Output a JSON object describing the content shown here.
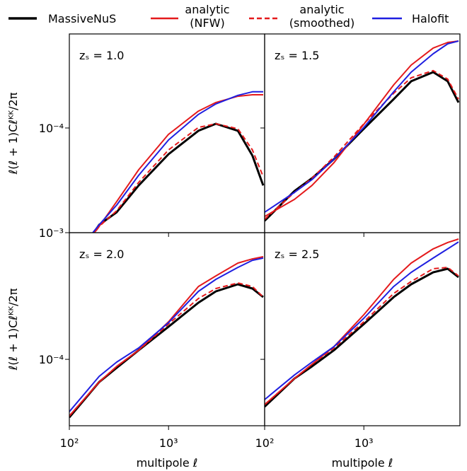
{
  "chart_data": [
    {
      "type": "line",
      "title": "zₛ = 1.0",
      "ylabel": "ℓ(ℓ + 1)Cℓᴷᴷ/2π",
      "x": [
        100,
        200,
        300,
        500,
        1000,
        2000,
        3000,
        5000,
        7000,
        9000
      ],
      "xlim": [
        100,
        9300
      ],
      "ylim": [
        1.49e-05,
        0.000553
      ],
      "log_x": true,
      "log_y": true,
      "xticks": [
        100,
        1000
      ],
      "yticks": [
        {
          "value": 0.0001,
          "label": "10⁻⁴"
        }
      ],
      "series": [
        {
          "name": "MassiveNuS",
          "color": "#000000",
          "values": [
            7.73e-06,
            1.72e-05,
            2.16e-05,
            3.52e-05,
            6.21e-05,
            9.51e-05,
            0.000108,
            9.51e-05,
            6.05e-05,
            3.52e-05
          ]
        },
        {
          "name": "analytic\n(NFW)",
          "color": "#e41a1c",
          "values": [
            8.24e-06,
            1.67e-05,
            2.62e-05,
            4.68e-05,
            8.91e-05,
            0.000136,
            0.000159,
            0.000178,
            0.000183,
            0.000183
          ]
        },
        {
          "name": "analytic\n(smoothed)",
          "color": "#e41a1c",
          "dashed": true,
          "values": [
            7.73e-06,
            1.67e-05,
            2.22e-05,
            3.72e-05,
            6.71e-05,
            0.000101,
            0.000108,
            9.86e-05,
            6.71e-05,
            4.12e-05
          ]
        },
        {
          "name": "Halofit",
          "color": "#1f1fe0",
          "values": [
            8.79e-06,
            1.72e-05,
            2.46e-05,
            4.23e-05,
            8.04e-05,
            0.000128,
            0.000155,
            0.000181,
            0.000193,
            0.000193
          ]
        }
      ]
    },
    {
      "type": "line",
      "title": "zₛ = 1.5",
      "x": [
        100,
        200,
        300,
        500,
        1000,
        2000,
        3000,
        5000,
        7000,
        9000
      ],
      "xlim": [
        100,
        9300
      ],
      "ylim": [
        1.49e-05,
        0.000553
      ],
      "log_x": true,
      "log_y": true,
      "xticks": [
        100,
        1000
      ],
      "yticks": [
        0.0001
      ],
      "series": [
        {
          "color": "#000000",
          "values": [
            1.85e-05,
            3.18e-05,
            4.01e-05,
            5.68e-05,
            9.86e-05,
            0.000169,
            0.000234,
            0.000276,
            0.000234,
            0.000159
          ]
        },
        {
          "color": "#e41a1c",
          "values": [
            2e-05,
            2.73e-05,
            3.52e-05,
            5.32e-05,
            0.000107,
            0.000219,
            0.000314,
            0.000428,
            0.000474,
            0.000486
          ]
        },
        {
          "color": "#e41a1c",
          "dashed": true,
          "values": [
            1.9e-05,
            3.1e-05,
            4.01e-05,
            5.9e-05,
            0.000108,
            0.000188,
            0.000249,
            0.000284,
            0.000243,
            0.000169
          ]
        },
        {
          "color": "#1f1fe0",
          "values": [
            2.16e-05,
            3.1e-05,
            3.91e-05,
            5.68e-05,
            0.000101,
            0.000193,
            0.000276,
            0.000386,
            0.000462,
            0.000486
          ]
        }
      ]
    },
    {
      "type": "line",
      "title": "zₛ = 2.0",
      "ylabel": "ℓ(ℓ + 1)Cℓᴷᴷ/2π",
      "xlabel": "multipole ℓ",
      "x": [
        100,
        200,
        300,
        500,
        1000,
        2000,
        3000,
        5000,
        7000,
        9000
      ],
      "xlim": [
        100,
        9300
      ],
      "ylim": [
        2.99e-05,
        0.001
      ],
      "log_x": true,
      "log_y": true,
      "xticks": [
        {
          "value": 100,
          "label": "10²"
        },
        {
          "value": 1000,
          "label": "10³"
        }
      ],
      "yticks": [
        {
          "value": 0.0001,
          "label": "10⁻⁴"
        },
        {
          "value": 0.001,
          "label": "10⁻³"
        }
      ],
      "series": [
        {
          "color": "#000000",
          "values": [
            3.48e-05,
            6.62e-05,
            8.57e-05,
            0.000118,
            0.000181,
            0.00028,
            0.000344,
            0.000391,
            0.000362,
            0.00031
          ]
        },
        {
          "color": "#e41a1c",
          "values": [
            3.57e-05,
            6.62e-05,
            8.79e-05,
            0.000118,
            0.000198,
            0.000376,
            0.000456,
            0.000575,
            0.000621,
            0.000646
          ]
        },
        {
          "color": "#e41a1c",
          "dashed": true,
          "values": [
            3.57e-05,
            6.62e-05,
            8.79e-05,
            0.000118,
            0.00019,
            0.000302,
            0.000362,
            0.000401,
            0.000376,
            0.00031
          ]
        },
        {
          "color": "#1f1fe0",
          "values": [
            3.86e-05,
            7.34e-05,
            9.51e-05,
            0.000123,
            0.000195,
            0.000344,
            0.000428,
            0.000532,
            0.000605,
            0.00063
          ]
        }
      ]
    },
    {
      "type": "line",
      "title": "zₛ = 2.5",
      "xlabel": "multipole ℓ",
      "x": [
        100,
        200,
        300,
        500,
        1000,
        2000,
        3000,
        5000,
        7000,
        9000
      ],
      "xlim": [
        100,
        9300
      ],
      "ylim": [
        2.99e-05,
        0.001
      ],
      "log_x": true,
      "log_y": true,
      "xticks": [
        {
          "value": 100,
          "label": "10²"
        },
        {
          "value": 1000,
          "label": "10³"
        }
      ],
      "yticks": [
        0.0001,
        0.001
      ],
      "series": [
        {
          "color": "#000000",
          "values": [
            4.23e-05,
            7.06e-05,
            8.79e-05,
            0.000118,
            0.00019,
            0.00031,
            0.000391,
            0.000486,
            0.000519,
            0.000445
          ]
        },
        {
          "color": "#e41a1c",
          "values": [
            4.39e-05,
            7.06e-05,
            9.14e-05,
            0.000126,
            0.000225,
            0.000428,
            0.000575,
            0.000745,
            0.000836,
            0.000891
          ]
        },
        {
          "color": "#e41a1c",
          "dashed": true,
          "values": [
            4.39e-05,
            7.06e-05,
            9.14e-05,
            0.000123,
            0.000198,
            0.000331,
            0.000412,
            0.000519,
            0.000532,
            0.000456
          ]
        },
        {
          "color": "#1f1fe0",
          "values": [
            4.81e-05,
            7.53e-05,
            9.51e-05,
            0.000126,
            0.000211,
            0.000376,
            0.000486,
            0.00063,
            0.000745,
            0.000845
          ]
        }
      ]
    }
  ]
}
